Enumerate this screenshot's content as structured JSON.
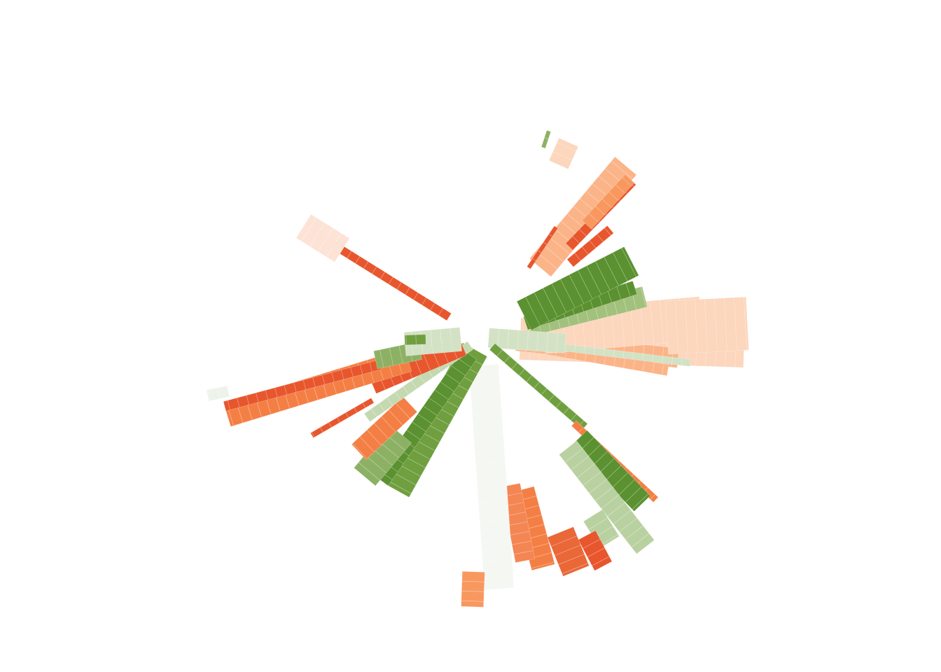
{
  "chart_data": {
    "type": "radial-stacked-bar",
    "title": "",
    "legend": "none",
    "grid": false,
    "axis_labels": "none",
    "value_unit_note": "",
    "colors": {
      "orange_dark": "#e8562e",
      "orange": "#f47f45",
      "orange_mid": "#f8985f",
      "orange_light": "#fbb488",
      "orange_pale": "#fcd6bd",
      "green_dark": "#5b9130",
      "green": "#709f3f",
      "green_mid": "#8db164",
      "green_light": "#b9d1a0",
      "green_pale": "#d3e2c4",
      "green_whisper": "#eef3ea"
    },
    "bars": [
      {
        "angle": 2,
        "start": 55,
        "end": 375,
        "width": 60,
        "color": "#fcd6bd"
      },
      {
        "angle": 6,
        "start": 50,
        "end": 282,
        "width": 28,
        "color": "#fbb488"
      },
      {
        "angle": 10,
        "start": 95,
        "end": 270,
        "width": 16,
        "color": "#fbb488"
      },
      {
        "angle": -3,
        "start": 55,
        "end": 360,
        "width": 14,
        "color": "#fbb488"
      },
      {
        "angle": -5,
        "start": 90,
        "end": 315,
        "width": 62,
        "color": "#fcd6bd"
      },
      {
        "angle": -3,
        "start": 265,
        "end": 380,
        "width": 76,
        "color": "#fcd6bd"
      },
      {
        "angle": -14,
        "start": 70,
        "end": 240,
        "width": 30,
        "color": "#a1c17d"
      },
      {
        "angle": -18,
        "start": 66,
        "end": 230,
        "width": 20,
        "color": "#5b9130"
      },
      {
        "angle": -27,
        "start": 68,
        "end": 240,
        "width": 46,
        "color": "#5b9130"
      },
      {
        "angle": -50,
        "start": 130,
        "end": 320,
        "width": 40,
        "color": "#fbb488"
      },
      {
        "angle": -46,
        "start": 180,
        "end": 310,
        "width": 14,
        "color": "#e8562e"
      },
      {
        "angle": -40,
        "start": 165,
        "end": 240,
        "width": 14,
        "color": "#e8562e"
      },
      {
        "angle": -56,
        "start": 120,
        "end": 190,
        "width": 6,
        "color": "#e8562e"
      },
      {
        "angle": -47,
        "start": 220,
        "end": 310,
        "width": 18,
        "color": "#f8985f"
      },
      {
        "angle": -66,
        "start": 270,
        "end": 305,
        "width": 30,
        "color": "#fcd6bd"
      },
      {
        "angle": -72,
        "start": 285,
        "end": 310,
        "width": 6,
        "color": "#8db164"
      },
      {
        "angle": 4,
        "start": 10,
        "end": 120,
        "width": 28,
        "color": "#d3e2c4"
      },
      {
        "angle": 7,
        "start": 120,
        "end": 300,
        "width": 10,
        "color": "#d3e2c4"
      },
      {
        "angle": 41,
        "start": 20,
        "end": 195,
        "width": 12,
        "color": "#709f3f"
      },
      {
        "angle": 43,
        "start": 180,
        "end": 340,
        "width": 10,
        "color": "#f47f45"
      },
      {
        "angle": 46,
        "start": 200,
        "end": 330,
        "width": 32,
        "color": "#5b9130"
      },
      {
        "angle": 52,
        "start": 200,
        "end": 380,
        "width": 32,
        "color": "#b9d1a0"
      },
      {
        "angle": 58,
        "start": 300,
        "end": 345,
        "width": 32,
        "color": "#b9d1a0"
      },
      {
        "angle": 62,
        "start": 320,
        "end": 370,
        "width": 28,
        "color": "#e8562e"
      },
      {
        "angle": 68,
        "start": 300,
        "end": 360,
        "width": 40,
        "color": "#ea6738"
      },
      {
        "angle": 75,
        "start": 225,
        "end": 340,
        "width": 34,
        "color": "#f47f45"
      },
      {
        "angle": 79,
        "start": 215,
        "end": 325,
        "width": 28,
        "color": "#f48654"
      },
      {
        "angle": 86,
        "start": 40,
        "end": 360,
        "width": 42,
        "color": "#f4f7f2"
      },
      {
        "angle": 92,
        "start": 335,
        "end": 385,
        "width": 32,
        "color": "#f8985f"
      },
      {
        "angle": 119,
        "start": 20,
        "end": 250,
        "width": 40,
        "color": "#709f3f"
      },
      {
        "angle": 125,
        "start": 30,
        "end": 250,
        "width": 24,
        "color": "#5b9130"
      },
      {
        "angle": 130,
        "start": 180,
        "end": 260,
        "width": 40,
        "color": "#8db164"
      },
      {
        "angle": 137,
        "start": 140,
        "end": 240,
        "width": 30,
        "color": "#f47f45"
      },
      {
        "angle": 145,
        "start": 20,
        "end": 200,
        "width": 14,
        "color": "#c5d9b0"
      },
      {
        "angle": 157,
        "start": 30,
        "end": 170,
        "width": 30,
        "color": "#e8562e"
      },
      {
        "angle": 163,
        "start": 110,
        "end": 380,
        "width": 34,
        "color": "#f47f45"
      },
      {
        "angle": 165,
        "start": 150,
        "end": 380,
        "width": 14,
        "color": "#e8562e"
      },
      {
        "angle": 168,
        "start": 370,
        "end": 400,
        "width": 16,
        "color": "#eef3ea"
      },
      {
        "angle": 168,
        "start": 90,
        "end": 155,
        "width": 26,
        "color": "#8db164"
      },
      {
        "angle": 175,
        "start": 30,
        "end": 110,
        "width": 34,
        "color": "#d3e2c4"
      },
      {
        "angle": 178,
        "start": 80,
        "end": 110,
        "width": 14,
        "color": "#709f3f"
      },
      {
        "angle": 212,
        "start": 55,
        "end": 285,
        "width": 12,
        "color": "#e8562e"
      },
      {
        "angle": 212,
        "start": 235,
        "end": 300,
        "width": 40,
        "color": "#fde3d6"
      },
      {
        "angle": 150,
        "start": 180,
        "end": 280,
        "width": 8,
        "color": "#e8562e"
      }
    ]
  }
}
